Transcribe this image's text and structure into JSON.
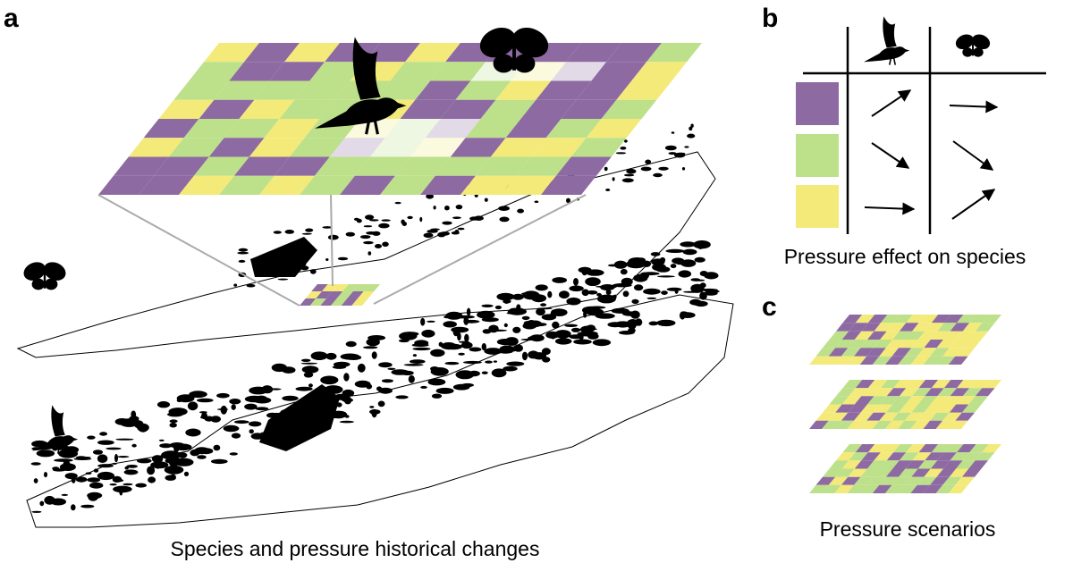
{
  "panels": {
    "a": {
      "label": "a",
      "caption": "Species and pressure historical changes"
    },
    "b": {
      "label": "b",
      "caption": "Pressure effect on species"
    },
    "c": {
      "label": "c",
      "caption": "Pressure scenarios"
    }
  }
}
